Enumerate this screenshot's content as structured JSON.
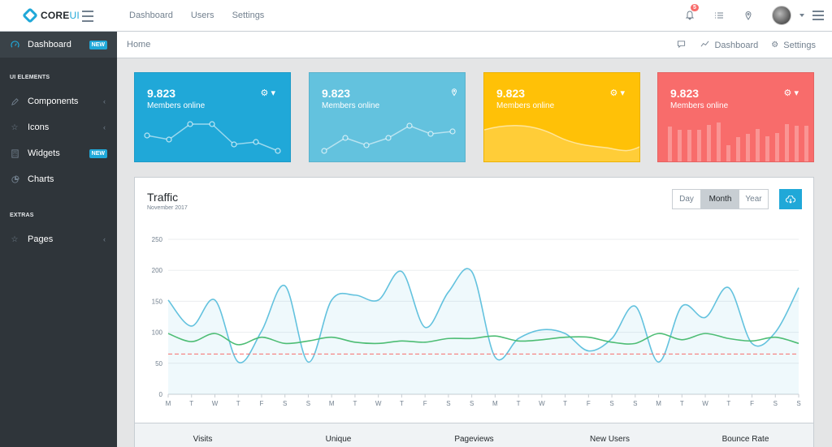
{
  "header": {
    "brand_bold": "CORE",
    "brand_light": "UI",
    "nav": [
      "Dashboard",
      "Users",
      "Settings"
    ],
    "notification_count": "5"
  },
  "sidebar": {
    "items": [
      {
        "label": "Dashboard",
        "icon": "speedometer-icon",
        "badge": "NEW",
        "active": true
      },
      {
        "section": "UI ELEMENTS"
      },
      {
        "label": "Components",
        "icon": "pencil-icon",
        "chevron": true
      },
      {
        "label": "Icons",
        "icon": "star-icon",
        "chevron": true
      },
      {
        "label": "Widgets",
        "icon": "calculator-icon",
        "badge": "NEW"
      },
      {
        "label": "Charts",
        "icon": "pie-chart-icon"
      },
      {
        "section": "EXTRAS"
      },
      {
        "label": "Pages",
        "icon": "star-icon",
        "chevron": true
      }
    ]
  },
  "breadcrumb": {
    "home": "Home",
    "links": [
      "Dashboard",
      "Settings"
    ]
  },
  "cards": [
    {
      "value": "9.823",
      "label": "Members online",
      "color": "#20a8d8",
      "icon": "gear-icon"
    },
    {
      "value": "9.823",
      "label": "Members online",
      "color": "#63c2de",
      "icon": "location-pin-icon"
    },
    {
      "value": "9.823",
      "label": "Members online",
      "color": "#ffc107",
      "icon": "gear-icon"
    },
    {
      "value": "9.823",
      "label": "Members online",
      "color": "#f86c6b",
      "icon": "gear-icon"
    }
  ],
  "traffic": {
    "title": "Traffic",
    "subtitle": "November 2017",
    "buttons": [
      "Day",
      "Month",
      "Year"
    ],
    "active_button": "Month"
  },
  "footer_stats": [
    "Visits",
    "Unique",
    "Pageviews",
    "New Users",
    "Bounce Rate"
  ],
  "chart_data": {
    "type": "line",
    "x": [
      "M",
      "T",
      "W",
      "T",
      "F",
      "S",
      "S",
      "M",
      "T",
      "W",
      "T",
      "F",
      "S",
      "S",
      "M",
      "T",
      "W",
      "T",
      "F",
      "S",
      "S",
      "M",
      "T",
      "W",
      "T",
      "F",
      "S",
      "S"
    ],
    "ylim": [
      0,
      250
    ],
    "yticks": [
      0,
      50,
      100,
      150,
      200,
      250
    ],
    "grid": true,
    "series": [
      {
        "color": "#63c2de",
        "fill": true,
        "values": [
          152,
          110,
          152,
          52,
          102,
          175,
          52,
          152,
          160,
          152,
          198,
          108,
          165,
          198,
          60,
          90,
          104,
          98,
          70,
          90,
          142,
          52,
          142,
          124,
          172,
          82,
          100,
          172
        ]
      },
      {
        "color": "#4dbd74",
        "values": [
          98,
          85,
          98,
          80,
          92,
          82,
          86,
          92,
          84,
          82,
          86,
          84,
          90,
          90,
          94,
          86,
          88,
          92,
          92,
          84,
          82,
          98,
          88,
          98,
          90,
          86,
          92,
          82
        ]
      },
      {
        "color": "#f86c6b",
        "dashed": true,
        "values": [
          65,
          65,
          65,
          65,
          65,
          65,
          65,
          65,
          65,
          65,
          65,
          65,
          65,
          65,
          65,
          65,
          65,
          65,
          65,
          65,
          65,
          65,
          65,
          65,
          65,
          65,
          65,
          65
        ]
      }
    ]
  }
}
